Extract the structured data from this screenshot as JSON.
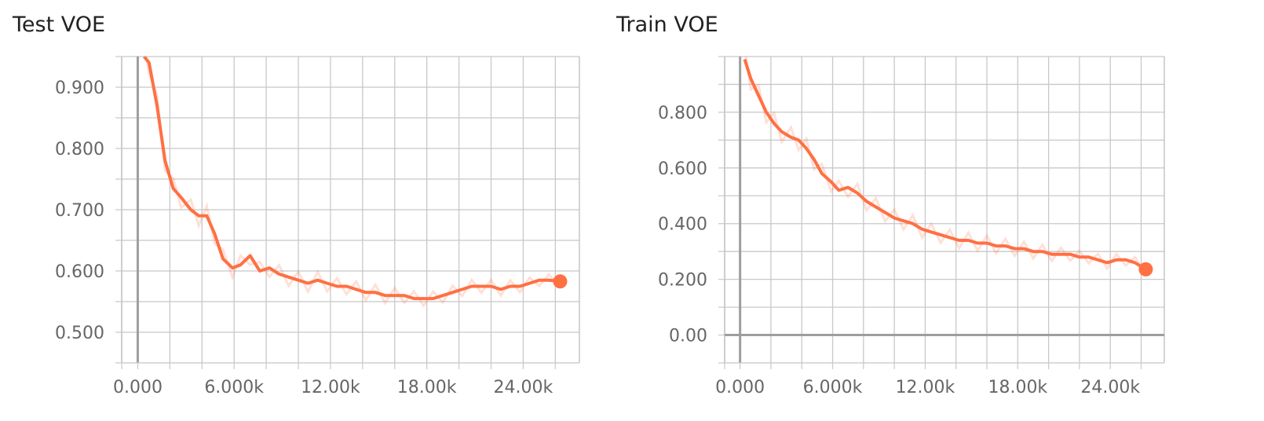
{
  "chart_data": [
    {
      "type": "line",
      "title": "Test VOE",
      "xlabel": "",
      "ylabel": "",
      "xlim": [
        -1000,
        27500
      ],
      "ylim": [
        0.45,
        0.95
      ],
      "xticks": [
        0,
        6000,
        12000,
        18000,
        24000
      ],
      "xtick_labels": [
        "0.000",
        "6.000k",
        "12.00k",
        "18.00k",
        "24.00k"
      ],
      "yticks": [
        0.5,
        0.6,
        0.7,
        0.8,
        0.9
      ],
      "ytick_labels": [
        "0.500",
        "0.600",
        "0.700",
        "0.800",
        "0.900"
      ],
      "grid": true,
      "series": [
        {
          "color": "#ff7043",
          "x": [
            400,
            700,
            1200,
            1700,
            2200,
            2700,
            3300,
            3800,
            4300,
            4800,
            5300,
            5900,
            6400,
            7000,
            7600,
            8200,
            8800,
            9400,
            10000,
            10600,
            11200,
            11800,
            12400,
            13000,
            13600,
            14200,
            14800,
            15400,
            16000,
            16600,
            17200,
            17800,
            18400,
            19000,
            19600,
            20200,
            20800,
            21400,
            22000,
            22600,
            23200,
            23800,
            24400,
            25000,
            25600,
            26300
          ],
          "values": [
            0.95,
            0.94,
            0.87,
            0.78,
            0.735,
            0.72,
            0.7,
            0.69,
            0.69,
            0.66,
            0.62,
            0.605,
            0.61,
            0.625,
            0.6,
            0.605,
            0.595,
            0.59,
            0.585,
            0.58,
            0.585,
            0.58,
            0.575,
            0.575,
            0.57,
            0.565,
            0.565,
            0.56,
            0.56,
            0.56,
            0.555,
            0.555,
            0.555,
            0.56,
            0.565,
            0.57,
            0.575,
            0.575,
            0.575,
            0.57,
            0.575,
            0.575,
            0.58,
            0.585,
            0.585,
            0.583
          ]
        }
      ]
    },
    {
      "type": "line",
      "title": "Train VOE",
      "xlabel": "",
      "ylabel": "",
      "xlim": [
        -1000,
        27500
      ],
      "ylim": [
        -0.1,
        1.0
      ],
      "xticks": [
        0,
        6000,
        12000,
        18000,
        24000
      ],
      "xtick_labels": [
        "0.000",
        "6.000k",
        "12.00k",
        "18.00k",
        "24.00k"
      ],
      "yticks": [
        0.0,
        0.2,
        0.4,
        0.6,
        0.8
      ],
      "ytick_labels": [
        "0.00",
        "0.200",
        "0.400",
        "0.600",
        "0.800"
      ],
      "grid": true,
      "series": [
        {
          "color": "#ff7043",
          "x": [
            300,
            700,
            1200,
            1700,
            2200,
            2700,
            3300,
            3800,
            4300,
            4800,
            5300,
            5900,
            6400,
            7000,
            7600,
            8200,
            8800,
            9400,
            10000,
            10600,
            11200,
            11800,
            12400,
            13000,
            13600,
            14200,
            14800,
            15400,
            16000,
            16600,
            17200,
            17800,
            18400,
            19000,
            19600,
            20200,
            20800,
            21400,
            22000,
            22600,
            23200,
            23800,
            24400,
            25000,
            25600,
            26300
          ],
          "values": [
            0.99,
            0.92,
            0.86,
            0.8,
            0.76,
            0.73,
            0.71,
            0.7,
            0.67,
            0.63,
            0.58,
            0.55,
            0.52,
            0.53,
            0.51,
            0.48,
            0.46,
            0.44,
            0.42,
            0.41,
            0.4,
            0.38,
            0.37,
            0.36,
            0.35,
            0.34,
            0.34,
            0.33,
            0.33,
            0.32,
            0.32,
            0.31,
            0.31,
            0.3,
            0.3,
            0.29,
            0.29,
            0.29,
            0.28,
            0.28,
            0.27,
            0.26,
            0.27,
            0.27,
            0.26,
            0.236
          ]
        }
      ]
    }
  ]
}
